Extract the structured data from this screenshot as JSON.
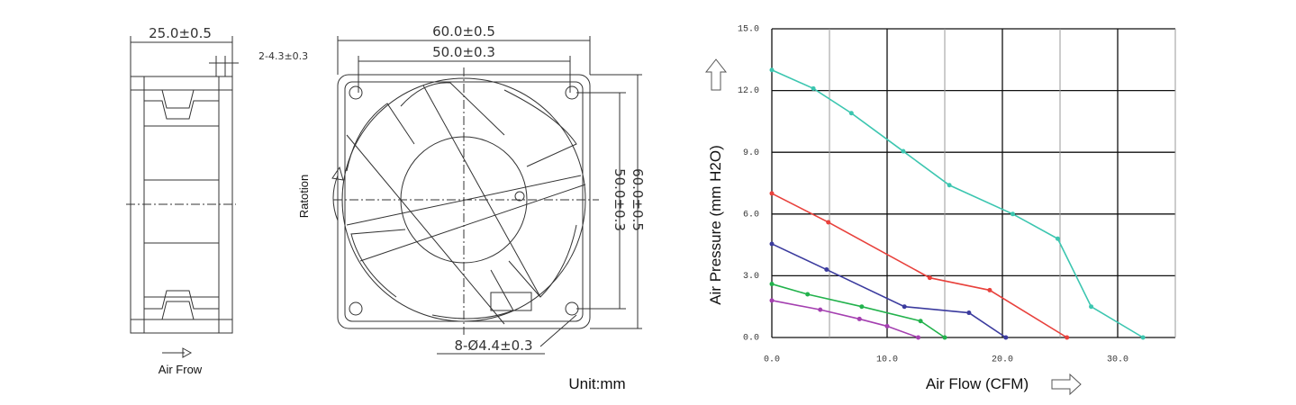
{
  "drawing": {
    "side_width": "25.0±0.5",
    "side_hole": "2-4.3±0.3",
    "air_flow": "Air Frow",
    "outer_width": "60.0±0.5",
    "hole_pitch_width": "50.0±0.3",
    "hole_pitch_height": "50.0±0.3",
    "outer_height": "60.0±0.5",
    "rotation": "Ratotion",
    "holes": "8-Ø4.4±0.3",
    "unit": "Unit:mm"
  },
  "chart_data": {
    "type": "line",
    "x_label": "Air Flow (CFM)",
    "y_label": "Air Pressure (mm H2O)",
    "xlim": [
      0,
      35
    ],
    "ylim": [
      0,
      15
    ],
    "xticks": [
      {
        "value": 0,
        "label": "0.0"
      },
      {
        "value": 10,
        "label": "10.0"
      },
      {
        "value": 20,
        "label": "20.0"
      },
      {
        "value": 30,
        "label": "30.0"
      }
    ],
    "x_minor_grid": [
      5,
      15,
      25,
      35
    ],
    "yticks": [
      {
        "value": 0,
        "label": "0.0"
      },
      {
        "value": 3,
        "label": "3.0"
      },
      {
        "value": 6,
        "label": "6.0"
      },
      {
        "value": 9,
        "label": "9.0"
      },
      {
        "value": 12,
        "label": "12.0"
      },
      {
        "value": 15,
        "label": "15.0"
      }
    ],
    "grid": true,
    "series": [
      {
        "color": "#3cc6b0",
        "x": [
          0,
          3.6,
          6.9,
          11.4,
          15.4,
          20.9,
          24.8,
          27.7,
          32.2
        ],
        "values": [
          13.0,
          12.1,
          10.9,
          9.05,
          7.4,
          6.0,
          4.8,
          1.5,
          0
        ]
      },
      {
        "color": "#e8413c",
        "x": [
          0,
          4.9,
          13.7,
          18.9,
          25.6
        ],
        "values": [
          7.0,
          5.6,
          2.9,
          2.3,
          0
        ]
      },
      {
        "color": "#3b3b9e",
        "x": [
          0,
          4.75,
          11.5,
          17.1,
          20.3
        ],
        "values": [
          4.55,
          3.3,
          1.5,
          1.2,
          0
        ]
      },
      {
        "color": "#22b24c",
        "x": [
          0,
          3.1,
          7.8,
          12.9,
          15.0
        ],
        "values": [
          2.6,
          2.1,
          1.5,
          0.8,
          0
        ]
      },
      {
        "color": "#a43fb0",
        "x": [
          0,
          4.2,
          7.6,
          10,
          12.7
        ],
        "values": [
          1.8,
          1.35,
          0.9,
          0.55,
          0
        ]
      }
    ]
  }
}
